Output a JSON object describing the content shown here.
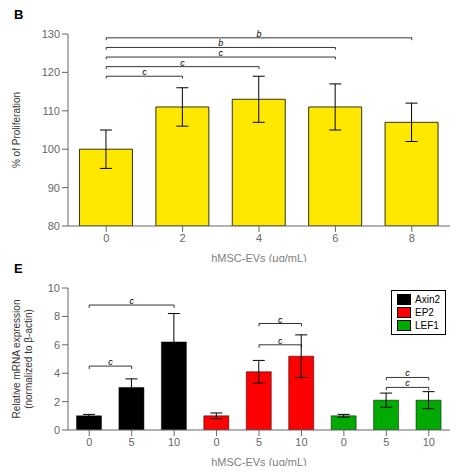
{
  "chart_data": [
    {
      "type": "bar",
      "title": "B",
      "categories": [
        0,
        2,
        4,
        6,
        8
      ],
      "values": [
        100,
        111,
        113,
        111,
        107
      ],
      "errors": [
        5,
        5,
        6,
        6,
        5
      ],
      "color": "#FFE800",
      "xlabel": "hMSC-EVs (μg/mL)",
      "ylabel": "% of Proliferation",
      "ylim": [
        80,
        130
      ],
      "yticks": [
        80,
        90,
        100,
        110,
        120,
        130
      ],
      "grid": false,
      "annotations": [
        {
          "x1": 0,
          "x2": 2,
          "y": 119,
          "label": "c"
        },
        {
          "x1": 0,
          "x2": 4,
          "y": 121.5,
          "label": "c"
        },
        {
          "x1": 0,
          "x2": 6,
          "y": 124,
          "label": "c"
        },
        {
          "x1": 0,
          "x2": 6,
          "y": 126.5,
          "label": "b"
        },
        {
          "x1": 0,
          "x2": 8,
          "y": 129,
          "label": "b"
        }
      ]
    },
    {
      "type": "bar",
      "title": "E",
      "categories": [
        0,
        5,
        10
      ],
      "series": [
        {
          "name": "Axin2",
          "color": "#000000",
          "values": [
            1.0,
            3.0,
            6.2
          ],
          "errors": [
            0.1,
            0.6,
            2.0
          ]
        },
        {
          "name": "EP2",
          "color": "#FF0000",
          "values": [
            1.0,
            4.1,
            5.2
          ],
          "errors": [
            0.2,
            0.8,
            1.5
          ]
        },
        {
          "name": "LEF1",
          "color": "#00AA00",
          "values": [
            1.0,
            2.1,
            2.1
          ],
          "errors": [
            0.1,
            0.5,
            0.6
          ]
        }
      ],
      "xlabel": "hMSC-EVs (μg/mL)",
      "ylabel": "Relative mRNA expression\n(normalized to β-actin)",
      "ylim": [
        0,
        10
      ],
      "yticks": [
        0,
        2,
        4,
        6,
        8,
        10
      ],
      "grid": false,
      "legend": "upper right",
      "annotations": [
        {
          "group": "Axin2",
          "x1": 0,
          "x2": 5,
          "y": 4.5,
          "label": "c"
        },
        {
          "group": "Axin2",
          "x1": 0,
          "x2": 10,
          "y": 8.8,
          "label": "c"
        },
        {
          "group": "EP2",
          "x1": 5,
          "x2": 10,
          "y": 6.0,
          "label": "c"
        },
        {
          "group": "EP2",
          "x1": 5,
          "x2": 10,
          "y": 7.5,
          "label": "c"
        },
        {
          "group": "LEF1",
          "x1": 5,
          "x2": 10,
          "y": 3.0,
          "label": "c"
        },
        {
          "group": "LEF1",
          "x1": 5,
          "x2": 10,
          "y": 3.7,
          "label": "c"
        }
      ]
    }
  ]
}
